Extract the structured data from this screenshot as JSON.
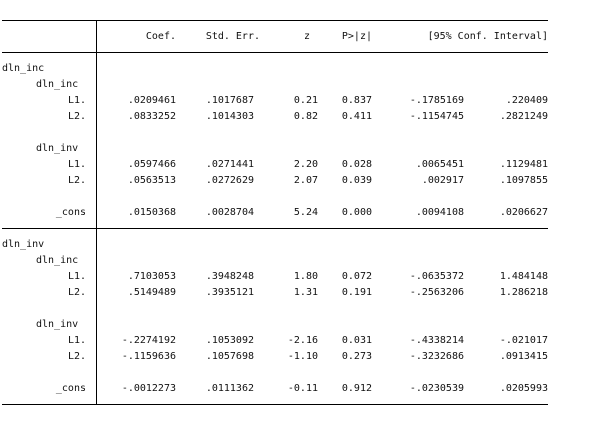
{
  "header": {
    "coef": "Coef.",
    "se": "Std. Err.",
    "z": "z",
    "p": "P>|z|",
    "ci": "[95% Conf. Interval]"
  },
  "equations": [
    {
      "name": "dln_inc",
      "groups": [
        {
          "name": "dln_inc",
          "rows": [
            {
              "label": "L1.",
              "coef": ".0209461",
              "se": ".1017687",
              "z": "0.21",
              "p": "0.837",
              "lo": "-.1785169",
              "hi": ".220409"
            },
            {
              "label": "L2.",
              "coef": ".0833252",
              "se": ".1014303",
              "z": "0.82",
              "p": "0.411",
              "lo": "-.1154745",
              "hi": ".2821249"
            }
          ]
        },
        {
          "name": "dln_inv",
          "rows": [
            {
              "label": "L1.",
              "coef": ".0597466",
              "se": ".0271441",
              "z": "2.20",
              "p": "0.028",
              "lo": ".0065451",
              "hi": ".1129481"
            },
            {
              "label": "L2.",
              "coef": ".0563513",
              "se": ".0272629",
              "z": "2.07",
              "p": "0.039",
              "lo": ".002917",
              "hi": ".1097855"
            }
          ]
        }
      ],
      "cons": {
        "label": "_cons",
        "coef": ".0150368",
        "se": ".0028704",
        "z": "5.24",
        "p": "0.000",
        "lo": ".0094108",
        "hi": ".0206627"
      }
    },
    {
      "name": "dln_inv",
      "groups": [
        {
          "name": "dln_inc",
          "rows": [
            {
              "label": "L1.",
              "coef": ".7103053",
              "se": ".3948248",
              "z": "1.80",
              "p": "0.072",
              "lo": "-.0635372",
              "hi": "1.484148"
            },
            {
              "label": "L2.",
              "coef": ".5149489",
              "se": ".3935121",
              "z": "1.31",
              "p": "0.191",
              "lo": "-.2563206",
              "hi": "1.286218"
            }
          ]
        },
        {
          "name": "dln_inv",
          "rows": [
            {
              "label": "L1.",
              "coef": "-.2274192",
              "se": ".1053092",
              "z": "-2.16",
              "p": "0.031",
              "lo": "-.4338214",
              "hi": "-.021017"
            },
            {
              "label": "L2.",
              "coef": "-.1159636",
              "se": ".1057698",
              "z": "-1.10",
              "p": "0.273",
              "lo": "-.3232686",
              "hi": ".0913415"
            }
          ]
        }
      ],
      "cons": {
        "label": "_cons",
        "coef": "-.0012273",
        "se": ".0111362",
        "z": "-0.11",
        "p": "0.912",
        "lo": "-.0230539",
        "hi": ".0205993"
      }
    }
  ]
}
